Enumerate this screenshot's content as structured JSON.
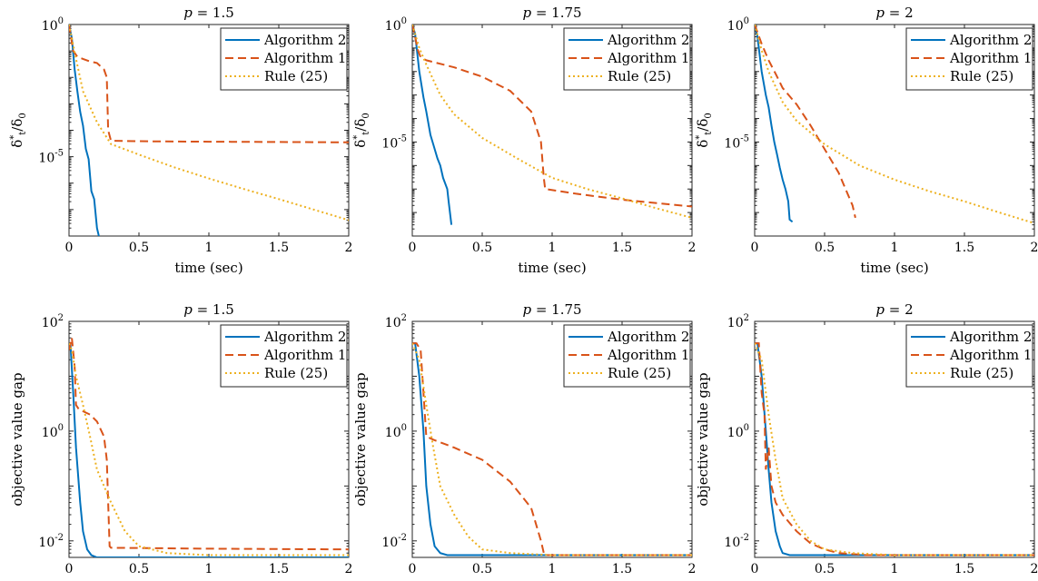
{
  "colors": {
    "Algorithm 2": "#0072BD",
    "Algorithm 1": "#D95319",
    "Rule (25)": "#EDB120"
  },
  "chart_data": [
    {
      "type": "line",
      "title": "p = 1.5",
      "xlabel": "time (sec)",
      "ylabel": "δ*_t/δ_0",
      "yscale": "log",
      "xlim": [
        0,
        2
      ],
      "ylim": [
        1e-08,
        1
      ],
      "xticks": [
        "0",
        "0.5",
        "1",
        "1.5",
        "2"
      ],
      "yticks": [
        "10^0",
        "10^-5"
      ],
      "ytick_values": [
        1,
        1e-05
      ],
      "legend": "top-right",
      "grid": false,
      "series": [
        {
          "name": "Algorithm 2",
          "style": "solid",
          "x": [
            0,
            0.02,
            0.04,
            0.06,
            0.08,
            0.1,
            0.12,
            0.14,
            0.16,
            0.18,
            0.2,
            0.22
          ],
          "y": [
            1,
            0.3,
            0.02,
            0.003,
            0.0005,
            0.00015,
            2e-05,
            8e-06,
            5e-07,
            2.5e-07,
            2e-08,
            7e-09
          ]
        },
        {
          "name": "Algorithm 1",
          "style": "dashed",
          "x": [
            0,
            0.03,
            0.06,
            0.1,
            0.15,
            0.2,
            0.25,
            0.27,
            0.28,
            0.3,
            0.6,
            1,
            1.5,
            2
          ],
          "y": [
            1,
            0.1,
            0.06,
            0.05,
            0.04,
            0.035,
            0.02,
            0.01,
            0.0001,
            4e-05,
            3.8e-05,
            3.7e-05,
            3.6e-05,
            3.5e-05
          ]
        },
        {
          "name": "Rule (25)",
          "style": "dotted",
          "x": [
            0,
            0.05,
            0.1,
            0.2,
            0.3,
            0.5,
            0.75,
            1,
            1.25,
            1.5,
            1.75,
            2
          ],
          "y": [
            1,
            0.05,
            0.003,
            0.0002,
            3e-05,
            1.2e-05,
            4e-06,
            1.5e-06,
            6e-07,
            2.5e-07,
            1e-07,
            4e-08
          ]
        }
      ]
    },
    {
      "type": "line",
      "title": "p = 1.75",
      "xlabel": "time (sec)",
      "ylabel": "δ*_t/δ_0",
      "yscale": "log",
      "xlim": [
        0,
        2
      ],
      "ylim": [
        1e-09,
        1
      ],
      "xticks": [
        "0",
        "0.5",
        "1",
        "1.5",
        "2"
      ],
      "yticks": [
        "10^0",
        "10^-5"
      ],
      "ytick_values": [
        1,
        1e-05
      ],
      "legend": "top-right",
      "grid": false,
      "series": [
        {
          "name": "Algorithm 2",
          "style": "solid",
          "x": [
            0,
            0.02,
            0.05,
            0.08,
            0.1,
            0.13,
            0.15,
            0.18,
            0.2,
            0.22,
            0.25,
            0.26,
            0.28
          ],
          "y": [
            1,
            0.4,
            0.01,
            0.0008,
            0.0002,
            2e-05,
            8e-06,
            2e-06,
            1e-06,
            3e-07,
            1e-07,
            3e-08,
            3e-09
          ]
        },
        {
          "name": "Algorithm 1",
          "style": "dashed",
          "x": [
            0,
            0.02,
            0.04,
            0.06,
            0.1,
            0.3,
            0.5,
            0.7,
            0.85,
            0.92,
            0.94,
            0.95,
            1.2,
            1.5,
            2
          ],
          "y": [
            1,
            0.3,
            0.08,
            0.04,
            0.03,
            0.015,
            0.006,
            0.0015,
            0.0002,
            1e-05,
            3e-07,
            1e-07,
            6e-08,
            3.5e-08,
            1.8e-08
          ]
        },
        {
          "name": "Rule (25)",
          "style": "dotted",
          "x": [
            0,
            0.05,
            0.1,
            0.2,
            0.3,
            0.5,
            0.75,
            1,
            1.25,
            1.5,
            1.75,
            2
          ],
          "y": [
            1,
            0.1,
            0.02,
            0.001,
            0.00015,
            1.5e-05,
            2e-06,
            3e-07,
            1e-07,
            4e-08,
            1.5e-08,
            6e-09
          ]
        }
      ]
    },
    {
      "type": "line",
      "title": "p = 2",
      "xlabel": "time (sec)",
      "ylabel": "δ*_t/δ_0",
      "yscale": "log",
      "xlim": [
        0,
        2
      ],
      "ylim": [
        1e-09,
        1
      ],
      "xticks": [
        "0",
        "0.5",
        "1",
        "1.5",
        "2"
      ],
      "yticks": [
        "10^0",
        "10^-5"
      ],
      "ytick_values": [
        1,
        1e-05
      ],
      "legend": "top-right",
      "grid": false,
      "series": [
        {
          "name": "Algorithm 2",
          "style": "solid",
          "x": [
            0,
            0.02,
            0.05,
            0.08,
            0.1,
            0.12,
            0.14,
            0.16,
            0.18,
            0.2,
            0.22,
            0.24,
            0.25,
            0.27
          ],
          "y": [
            1,
            0.3,
            0.01,
            0.001,
            0.0003,
            5e-05,
            1e-05,
            3e-06,
            8e-07,
            2.5e-07,
            1e-07,
            3e-08,
            5e-09,
            4e-09
          ]
        },
        {
          "name": "Algorithm 1",
          "style": "dashed",
          "x": [
            0,
            0.05,
            0.1,
            0.15,
            0.2,
            0.3,
            0.4,
            0.5,
            0.6,
            0.65,
            0.7,
            0.72
          ],
          "y": [
            1,
            0.15,
            0.03,
            0.008,
            0.002,
            0.0004,
            5e-05,
            5e-06,
            5e-07,
            1e-07,
            2e-08,
            6e-09
          ]
        },
        {
          "name": "Rule (25)",
          "style": "dotted",
          "x": [
            0,
            0.05,
            0.1,
            0.2,
            0.3,
            0.5,
            0.75,
            1,
            1.25,
            1.5,
            1.75,
            2
          ],
          "y": [
            1,
            0.08,
            0.01,
            0.0005,
            8e-05,
            8e-06,
            1e-06,
            2.5e-07,
            8e-08,
            3e-08,
            1e-08,
            3.5e-09
          ]
        }
      ]
    },
    {
      "type": "line",
      "title": "p = 1.5",
      "xlabel": "time (sec)",
      "ylabel": "objective value gap",
      "yscale": "log",
      "xlim": [
        0,
        2
      ],
      "ylim": [
        0.005,
        100
      ],
      "xticks": [
        "0",
        "0.5",
        "1",
        "1.5",
        "2"
      ],
      "yticks": [
        "10^2",
        "10^0",
        "10^-2"
      ],
      "ytick_values": [
        100,
        1,
        0.01
      ],
      "legend": "top-right",
      "grid": false,
      "series": [
        {
          "name": "Algorithm 2",
          "style": "solid",
          "x": [
            0,
            0.01,
            0.03,
            0.05,
            0.08,
            0.1,
            0.13,
            0.16,
            0.2,
            0.25,
            2
          ],
          "y": [
            30,
            40,
            5,
            0.5,
            0.05,
            0.015,
            0.007,
            0.0055,
            0.005,
            0.005,
            0.005
          ]
        },
        {
          "name": "Algorithm 1",
          "style": "dashed",
          "x": [
            0,
            0.02,
            0.04,
            0.05,
            0.07,
            0.1,
            0.15,
            0.2,
            0.25,
            0.27,
            0.28,
            0.29,
            0.3,
            1,
            2
          ],
          "y": [
            30,
            50,
            15,
            3,
            2.5,
            2.3,
            2,
            1.5,
            0.8,
            0.3,
            0.05,
            0.008,
            0.0075,
            0.0072,
            0.007
          ]
        },
        {
          "name": "Rule (25)",
          "style": "dotted",
          "x": [
            0,
            0.02,
            0.05,
            0.1,
            0.15,
            0.2,
            0.3,
            0.4,
            0.5,
            0.7,
            1,
            2
          ],
          "y": [
            40,
            30,
            10,
            3,
            0.8,
            0.2,
            0.05,
            0.015,
            0.008,
            0.006,
            0.0055,
            0.0055
          ]
        }
      ]
    },
    {
      "type": "line",
      "title": "p = 1.75",
      "xlabel": "time (sec)",
      "ylabel": "objective value gap",
      "yscale": "log",
      "xlim": [
        0,
        2
      ],
      "ylim": [
        0.005,
        100
      ],
      "xticks": [
        "0",
        "0.5",
        "1",
        "1.5",
        "2"
      ],
      "yticks": [
        "10^2",
        "10^0",
        "10^-2"
      ],
      "ytick_values": [
        100,
        1,
        0.01
      ],
      "legend": "top-right",
      "grid": false,
      "series": [
        {
          "name": "Algorithm 2",
          "style": "solid",
          "x": [
            0,
            0.02,
            0.05,
            0.08,
            0.1,
            0.13,
            0.16,
            0.2,
            0.25,
            2
          ],
          "y": [
            40,
            40,
            10,
            1,
            0.1,
            0.02,
            0.008,
            0.006,
            0.0055,
            0.0055
          ]
        },
        {
          "name": "Algorithm 1",
          "style": "dashed",
          "x": [
            0,
            0.03,
            0.06,
            0.08,
            0.1,
            0.15,
            0.3,
            0.5,
            0.7,
            0.85,
            0.92,
            0.94,
            0.95,
            2
          ],
          "y": [
            40,
            40,
            30,
            5,
            0.8,
            0.7,
            0.5,
            0.3,
            0.12,
            0.04,
            0.01,
            0.006,
            0.0055,
            0.0055
          ]
        },
        {
          "name": "Rule (25)",
          "style": "dotted",
          "x": [
            0,
            0.05,
            0.1,
            0.15,
            0.2,
            0.3,
            0.4,
            0.5,
            0.7,
            1,
            2
          ],
          "y": [
            40,
            20,
            3,
            0.5,
            0.1,
            0.03,
            0.012,
            0.007,
            0.006,
            0.0055,
            0.0055
          ]
        }
      ]
    },
    {
      "type": "line",
      "title": "p = 2",
      "xlabel": "time (sec)",
      "ylabel": "objective value gap",
      "yscale": "log",
      "xlim": [
        0,
        2
      ],
      "ylim": [
        0.005,
        100
      ],
      "xticks": [
        "0",
        "0.5",
        "1",
        "1.5",
        "2"
      ],
      "yticks": [
        "10^2",
        "10^0",
        "10^-2"
      ],
      "ytick_values": [
        100,
        1,
        0.01
      ],
      "legend": "top-right",
      "grid": false,
      "series": [
        {
          "name": "Algorithm 2",
          "style": "solid",
          "x": [
            0,
            0.02,
            0.05,
            0.08,
            0.1,
            0.12,
            0.15,
            0.18,
            0.2,
            0.25,
            2
          ],
          "y": [
            40,
            40,
            10,
            1,
            0.2,
            0.05,
            0.015,
            0.008,
            0.006,
            0.0055,
            0.0055
          ]
        },
        {
          "name": "Algorithm 1",
          "style": "dashed",
          "x": [
            0,
            0.03,
            0.05,
            0.07,
            0.08,
            0.1,
            0.12,
            0.15,
            0.2,
            0.3,
            0.4,
            0.5,
            0.6,
            0.8,
            2
          ],
          "y": [
            40,
            40,
            5,
            2,
            0.2,
            0.5,
            0.1,
            0.05,
            0.03,
            0.015,
            0.009,
            0.007,
            0.006,
            0.0055,
            0.0055
          ]
        },
        {
          "name": "Rule (25)",
          "style": "dotted",
          "x": [
            0,
            0.05,
            0.1,
            0.15,
            0.2,
            0.3,
            0.4,
            0.5,
            0.7,
            1,
            2
          ],
          "y": [
            40,
            20,
            2,
            0.3,
            0.06,
            0.02,
            0.01,
            0.007,
            0.006,
            0.0055,
            0.0055
          ]
        }
      ]
    }
  ]
}
